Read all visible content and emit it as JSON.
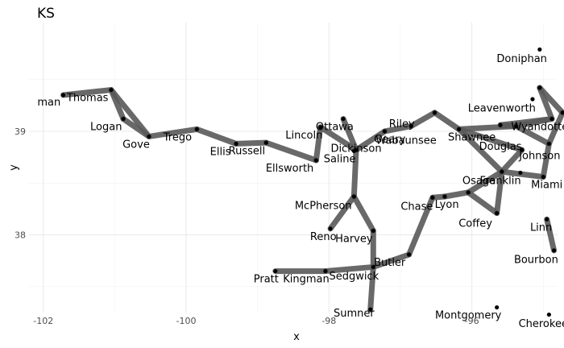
{
  "chart_data": {
    "type": "line",
    "title": "KS",
    "xlabel": "x",
    "ylabel": "y",
    "xlim": [
      -102.2,
      -94.8
    ],
    "ylim": [
      37.25,
      40.05
    ],
    "x_ticks": [
      -102,
      -100,
      -98,
      -96
    ],
    "y_ticks": [
      38,
      39
    ],
    "x_tick_labels": [
      "-102",
      "-100",
      "-98",
      "-96"
    ],
    "y_tick_labels": [
      "38",
      "39"
    ],
    "grid": true,
    "line_color": "#595959",
    "point_color": "#000000",
    "nodes": [
      {
        "name": "Sherman",
        "label": "man",
        "x": -101.72,
        "y": 39.35,
        "lx": -101.92,
        "ly": 39.25
      },
      {
        "name": "Thomas",
        "label": "Thomas",
        "x": -101.05,
        "y": 39.4,
        "lx": -101.38,
        "ly": 39.29
      },
      {
        "name": "Logan",
        "label": "Logan",
        "x": -100.88,
        "y": 39.12,
        "lx": -101.12,
        "ly": 39.01
      },
      {
        "name": "Gove",
        "label": "Gove",
        "x": -100.52,
        "y": 38.95,
        "lx": -100.7,
        "ly": 38.84
      },
      {
        "name": "Trego",
        "label": "Trego",
        "x": -99.85,
        "y": 39.02,
        "lx": -100.12,
        "ly": 38.91
      },
      {
        "name": "Ellis",
        "label": "Ellis",
        "x": -99.3,
        "y": 38.88,
        "lx": -99.52,
        "ly": 38.77
      },
      {
        "name": "Russell",
        "label": "Russell",
        "x": -98.88,
        "y": 38.89,
        "lx": -99.15,
        "ly": 38.78
      },
      {
        "name": "Ellsworth",
        "label": "Ellsworth",
        "x": -98.18,
        "y": 38.72,
        "lx": -98.55,
        "ly": 38.61
      },
      {
        "name": "Lincoln",
        "label": "Lincoln",
        "x": -98.12,
        "y": 39.04,
        "lx": -98.35,
        "ly": 38.93
      },
      {
        "name": "Ottawa",
        "label": "Ottawa",
        "x": -97.8,
        "y": 39.12,
        "lx": -97.92,
        "ly": 39.01
      },
      {
        "name": "Saline",
        "label": "Saline",
        "x": -97.65,
        "y": 38.81,
        "lx": -97.85,
        "ly": 38.7
      },
      {
        "name": "Dickinson",
        "label": "Dickinson",
        "x": -97.62,
        "y": 38.82,
        "lx": -97.62,
        "ly": 38.8
      },
      {
        "name": "Geary",
        "label": "Geary",
        "x": -97.22,
        "y": 39.0,
        "lx": -97.15,
        "ly": 38.89
      },
      {
        "name": "Riley",
        "label": "Riley",
        "x": -96.85,
        "y": 39.05,
        "lx": -96.98,
        "ly": 39.04
      },
      {
        "name": "Wabaunsee",
        "label": "Wabaunsee",
        "x": -96.52,
        "y": 39.18,
        "lx": -96.92,
        "ly": 38.88
      },
      {
        "name": "Shawnee",
        "label": "Shawnee",
        "x": -96.18,
        "y": 39.02,
        "lx": -96.0,
        "ly": 38.91
      },
      {
        "name": "Leavenworth",
        "label": "Leavenworth",
        "x": -95.6,
        "y": 39.06,
        "lx": -95.58,
        "ly": 39.19
      },
      {
        "name": "Wyandotte",
        "label": "Wyandotte",
        "x": -94.88,
        "y": 39.12,
        "lx": -95.05,
        "ly": 39.01
      },
      {
        "name": "Johnson",
        "label": "Johnson",
        "x": -94.92,
        "y": 38.88,
        "lx": -95.05,
        "ly": 38.73
      },
      {
        "name": "Douglas",
        "label": "Douglas",
        "x": -95.3,
        "y": 38.82,
        "lx": -95.6,
        "ly": 38.82
      },
      {
        "name": "Doniphan",
        "label": "Doniphan",
        "x": -95.05,
        "y": 39.79,
        "lx": -95.3,
        "ly": 39.67
      },
      {
        "name": "Atchison",
        "label": "",
        "x": -95.15,
        "y": 39.31,
        "lx": 0,
        "ly": 0
      },
      {
        "name": "Jefferson",
        "label": "",
        "x": -95.38,
        "y": 39.05,
        "lx": 0,
        "ly": 0
      },
      {
        "name": "Franklin",
        "label": "Franklin",
        "x": -95.58,
        "y": 38.61,
        "lx": -95.6,
        "ly": 38.49
      },
      {
        "name": "Miami",
        "label": "Miami",
        "x": -95.0,
        "y": 38.56,
        "lx": -94.95,
        "ly": 38.45
      },
      {
        "name": "JohnsonS",
        "label": "",
        "x": -95.32,
        "y": 38.6,
        "lx": 0,
        "ly": 0
      },
      {
        "name": "Osage",
        "label": "Osage",
        "x": -96.05,
        "y": 38.41,
        "lx": -95.9,
        "ly": 38.49
      },
      {
        "name": "Coffey",
        "label": "Coffey",
        "x": -95.65,
        "y": 38.21,
        "lx": -95.95,
        "ly": 38.08
      },
      {
        "name": "Lyon",
        "label": "Lyon",
        "x": -96.38,
        "y": 38.37,
        "lx": -96.35,
        "ly": 38.26
      },
      {
        "name": "Chase",
        "label": "Chase",
        "x": -96.55,
        "y": 38.36,
        "lx": -96.77,
        "ly": 38.24
      },
      {
        "name": "McPherson",
        "label": "McPherson",
        "x": -97.65,
        "y": 38.37,
        "lx": -98.08,
        "ly": 38.25
      },
      {
        "name": "Reno",
        "label": "Reno",
        "x": -97.98,
        "y": 38.06,
        "lx": -98.08,
        "ly": 37.95
      },
      {
        "name": "Harvey",
        "label": "Harvey",
        "x": -97.38,
        "y": 38.04,
        "lx": -97.65,
        "ly": 37.93
      },
      {
        "name": "Butler",
        "label": "Butler",
        "x": -96.88,
        "y": 37.81,
        "lx": -97.15,
        "ly": 37.7
      },
      {
        "name": "Sedgwick",
        "label": "Sedgwick",
        "x": -97.38,
        "y": 37.69,
        "lx": -97.65,
        "ly": 37.57
      },
      {
        "name": "Kingman",
        "label": "Kingman",
        "x": -98.05,
        "y": 37.65,
        "lx": -98.32,
        "ly": 37.54
      },
      {
        "name": "Pratt",
        "label": "Pratt",
        "x": -98.75,
        "y": 37.65,
        "lx": -98.88,
        "ly": 37.54
      },
      {
        "name": "Sumner",
        "label": "Sumner",
        "x": -97.42,
        "y": 37.28,
        "lx": -97.65,
        "ly": 37.21
      },
      {
        "name": "Montgomery",
        "label": "Montgomery",
        "x": -95.65,
        "y": 37.3,
        "lx": -96.05,
        "ly": 37.19
      },
      {
        "name": "Cherokee",
        "label": "Cherokee",
        "x": -94.92,
        "y": 37.23,
        "lx": -95.0,
        "ly": 37.11
      },
      {
        "name": "Linn",
        "label": "Linn",
        "x": -94.95,
        "y": 38.15,
        "lx": -95.03,
        "ly": 38.04
      },
      {
        "name": "Bourbon",
        "label": "Bourbon",
        "x": -94.85,
        "y": 37.85,
        "lx": -95.1,
        "ly": 37.73
      },
      {
        "name": "Nemaha",
        "label": "",
        "x": -95.05,
        "y": 39.42,
        "lx": 0,
        "ly": 0
      },
      {
        "name": "Brown",
        "label": "",
        "x": -94.73,
        "y": 39.18,
        "lx": 0,
        "ly": 0
      }
    ],
    "edges": [
      [
        "Sherman",
        "Thomas"
      ],
      [
        "Thomas",
        "Logan"
      ],
      [
        "Thomas",
        "Gove"
      ],
      [
        "Logan",
        "Gove"
      ],
      [
        "Gove",
        "Trego"
      ],
      [
        "Trego",
        "Ellis"
      ],
      [
        "Ellis",
        "Russell"
      ],
      [
        "Russell",
        "Ellsworth"
      ],
      [
        "Ellsworth",
        "Lincoln"
      ],
      [
        "Lincoln",
        "Dickinson"
      ],
      [
        "Ottawa",
        "Dickinson"
      ],
      [
        "Dickinson",
        "Geary"
      ],
      [
        "Geary",
        "Riley"
      ],
      [
        "Riley",
        "Wabaunsee"
      ],
      [
        "Wabaunsee",
        "Shawnee"
      ],
      [
        "Shawnee",
        "Jefferson"
      ],
      [
        "Jefferson",
        "Leavenworth"
      ],
      [
        "Leavenworth",
        "Wyandotte"
      ],
      [
        "Wyandotte",
        "Nemaha"
      ],
      [
        "Nemaha",
        "Brown"
      ],
      [
        "Brown",
        "Johnson"
      ],
      [
        "Johnson",
        "Jefferson"
      ],
      [
        "Johnson",
        "Miami"
      ],
      [
        "Miami",
        "Franklin"
      ],
      [
        "Franklin",
        "Douglas"
      ],
      [
        "Douglas",
        "Shawnee"
      ],
      [
        "Shawnee",
        "Franklin"
      ],
      [
        "Franklin",
        "Osage"
      ],
      [
        "Osage",
        "Lyon"
      ],
      [
        "Franklin",
        "Coffey"
      ],
      [
        "Coffey",
        "Osage"
      ],
      [
        "Lyon",
        "Chase"
      ],
      [
        "Chase",
        "Butler"
      ],
      [
        "Butler",
        "Sedgwick"
      ],
      [
        "Sedgwick",
        "Sumner"
      ],
      [
        "Sedgwick",
        "Kingman"
      ],
      [
        "Kingman",
        "Pratt"
      ],
      [
        "Sedgwick",
        "Harvey"
      ],
      [
        "Harvey",
        "McPherson"
      ],
      [
        "McPherson",
        "Reno"
      ],
      [
        "McPherson",
        "Dickinson"
      ],
      [
        "Linn",
        "Bourbon"
      ],
      [
        "Wyandotte",
        "Jefferson"
      ]
    ]
  }
}
